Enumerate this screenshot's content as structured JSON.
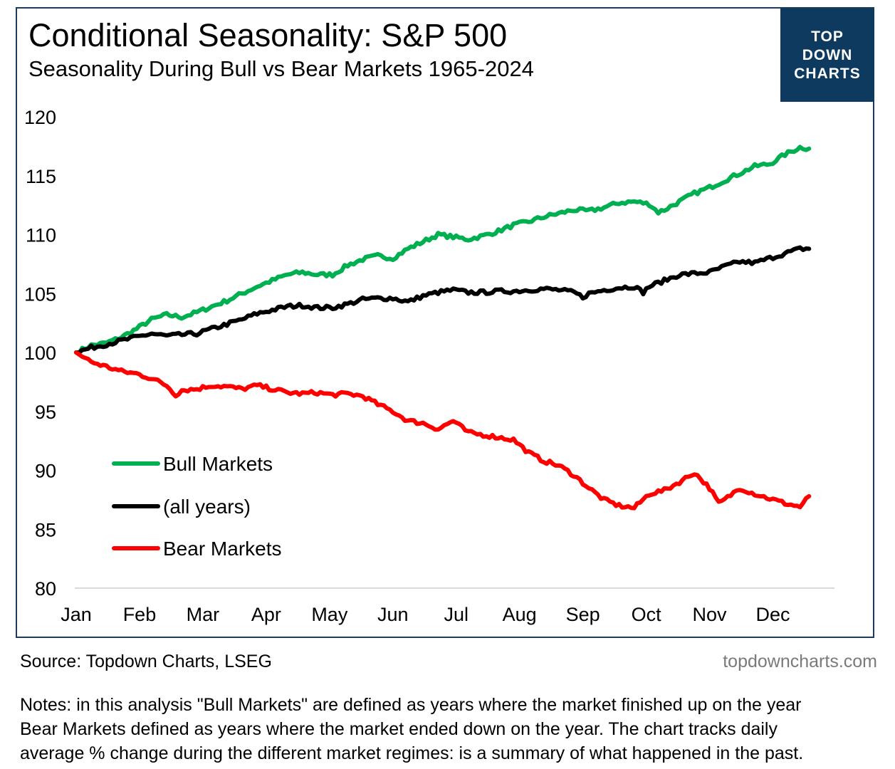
{
  "header": {
    "title": "Conditional Seasonality: S&P 500",
    "subtitle": "Seasonality During Bull vs Bear Markets 1965-2024"
  },
  "logo": {
    "lines": [
      "TOP",
      "DOWN",
      "CHARTS"
    ]
  },
  "footer": {
    "source": "Source: Topdown Charts, LSEG",
    "website": "topdowncharts.com",
    "notes": [
      "Notes: in this analysis \"Bull Markets\" are defined as years where the market finished up on the year",
      "Bear Markets defined as years where the market ended down on the year.  The chart tracks daily",
      "average % change during the different market regimes: is a summary of what happened in the past."
    ]
  },
  "colors": {
    "bull": "#00b050",
    "all": "#000000",
    "bear": "#ff0000",
    "frame": "#1b3a5c",
    "logo_bg": "#0d3a5e",
    "axis": "#d9d9d9"
  },
  "chart_data": {
    "type": "line",
    "title": "Conditional Seasonality: S&P 500",
    "subtitle": "Seasonality During Bull vs Bear Markets 1965-2024",
    "xlabel": "",
    "ylabel": "",
    "x_unit": "trading day (0-250)",
    "xlim": [
      0,
      250
    ],
    "ylim": [
      80,
      120
    ],
    "yticks": [
      80,
      85,
      90,
      95,
      100,
      105,
      110,
      115,
      120
    ],
    "months": [
      "Jan",
      "Feb",
      "Mar",
      "Apr",
      "May",
      "Jun",
      "Jul",
      "Aug",
      "Sep",
      "Oct",
      "Nov",
      "Dec"
    ],
    "month_positions": [
      0,
      21,
      42,
      63,
      84,
      105,
      126,
      147,
      168,
      189,
      210,
      231
    ],
    "grid": false,
    "legend_position": "lower-left",
    "series": [
      {
        "name": "Bull Markets",
        "color": "#00b050",
        "points": [
          [
            0,
            100
          ],
          [
            5,
            100.6
          ],
          [
            10,
            100.8
          ],
          [
            15,
            101.3
          ],
          [
            20,
            102.0
          ],
          [
            25,
            102.8
          ],
          [
            30,
            103.2
          ],
          [
            35,
            103.0
          ],
          [
            40,
            103.4
          ],
          [
            45,
            103.9
          ],
          [
            50,
            104.4
          ],
          [
            55,
            105.0
          ],
          [
            60,
            105.6
          ],
          [
            65,
            106.1
          ],
          [
            70,
            106.6
          ],
          [
            75,
            106.8
          ],
          [
            80,
            106.6
          ],
          [
            85,
            106.6
          ],
          [
            90,
            107.4
          ],
          [
            95,
            107.9
          ],
          [
            100,
            108.2
          ],
          [
            105,
            108.0
          ],
          [
            110,
            108.8
          ],
          [
            115,
            109.4
          ],
          [
            120,
            110.0
          ],
          [
            125,
            109.8
          ],
          [
            130,
            109.6
          ],
          [
            135,
            109.9
          ],
          [
            140,
            110.3
          ],
          [
            145,
            110.8
          ],
          [
            150,
            111.1
          ],
          [
            155,
            111.5
          ],
          [
            160,
            111.8
          ],
          [
            165,
            112.1
          ],
          [
            170,
            112.0
          ],
          [
            175,
            112.3
          ],
          [
            180,
            112.7
          ],
          [
            185,
            112.8
          ],
          [
            190,
            112.6
          ],
          [
            193,
            111.9
          ],
          [
            195,
            112.1
          ],
          [
            200,
            112.8
          ],
          [
            205,
            113.5
          ],
          [
            210,
            114.0
          ],
          [
            215,
            114.6
          ],
          [
            220,
            115.2
          ],
          [
            225,
            115.8
          ],
          [
            230,
            116.0
          ],
          [
            235,
            116.8
          ],
          [
            240,
            117.4
          ],
          [
            243,
            117.3
          ]
        ]
      },
      {
        "name": "(all years)",
        "color": "#000000",
        "points": [
          [
            0,
            100
          ],
          [
            5,
            100.4
          ],
          [
            10,
            100.7
          ],
          [
            15,
            101.0
          ],
          [
            20,
            101.3
          ],
          [
            25,
            101.6
          ],
          [
            30,
            101.4
          ],
          [
            35,
            101.5
          ],
          [
            40,
            101.6
          ],
          [
            45,
            102.0
          ],
          [
            50,
            102.4
          ],
          [
            55,
            102.8
          ],
          [
            60,
            103.3
          ],
          [
            65,
            103.6
          ],
          [
            70,
            103.9
          ],
          [
            75,
            104.0
          ],
          [
            80,
            103.8
          ],
          [
            85,
            103.8
          ],
          [
            90,
            104.1
          ],
          [
            95,
            104.5
          ],
          [
            100,
            104.6
          ],
          [
            105,
            104.6
          ],
          [
            110,
            104.3
          ],
          [
            115,
            104.8
          ],
          [
            120,
            105.1
          ],
          [
            125,
            105.3
          ],
          [
            130,
            105.1
          ],
          [
            135,
            105.1
          ],
          [
            140,
            105.2
          ],
          [
            145,
            105.2
          ],
          [
            150,
            105.3
          ],
          [
            155,
            105.4
          ],
          [
            160,
            105.3
          ],
          [
            165,
            105.1
          ],
          [
            168,
            104.7
          ],
          [
            170,
            105.0
          ],
          [
            175,
            105.3
          ],
          [
            180,
            105.5
          ],
          [
            185,
            105.6
          ],
          [
            188,
            105.1
          ],
          [
            190,
            105.6
          ],
          [
            195,
            106.1
          ],
          [
            200,
            106.6
          ],
          [
            205,
            106.7
          ],
          [
            210,
            106.8
          ],
          [
            215,
            107.3
          ],
          [
            220,
            107.7
          ],
          [
            225,
            107.6
          ],
          [
            230,
            108.0
          ],
          [
            235,
            108.4
          ],
          [
            240,
            108.8
          ],
          [
            243,
            108.8
          ]
        ]
      },
      {
        "name": "Bear Markets",
        "color": "#ff0000",
        "points": [
          [
            0,
            100
          ],
          [
            5,
            99.2
          ],
          [
            10,
            98.8
          ],
          [
            15,
            98.4
          ],
          [
            20,
            98.2
          ],
          [
            25,
            97.8
          ],
          [
            30,
            97.2
          ],
          [
            33,
            96.4
          ],
          [
            35,
            96.8
          ],
          [
            40,
            96.9
          ],
          [
            45,
            97.2
          ],
          [
            50,
            97.1
          ],
          [
            55,
            96.9
          ],
          [
            60,
            97.2
          ],
          [
            65,
            96.9
          ],
          [
            70,
            96.6
          ],
          [
            75,
            96.5
          ],
          [
            80,
            96.6
          ],
          [
            85,
            96.4
          ],
          [
            90,
            96.5
          ],
          [
            95,
            96.3
          ],
          [
            100,
            95.6
          ],
          [
            105,
            95.0
          ],
          [
            110,
            94.2
          ],
          [
            115,
            94.0
          ],
          [
            120,
            93.5
          ],
          [
            125,
            94.2
          ],
          [
            130,
            93.2
          ],
          [
            135,
            93.0
          ],
          [
            140,
            92.8
          ],
          [
            145,
            92.6
          ],
          [
            150,
            91.5
          ],
          [
            155,
            90.8
          ],
          [
            160,
            90.4
          ],
          [
            165,
            89.6
          ],
          [
            170,
            88.5
          ],
          [
            175,
            87.5
          ],
          [
            180,
            87.0
          ],
          [
            185,
            86.8
          ],
          [
            190,
            88.0
          ],
          [
            195,
            88.3
          ],
          [
            200,
            89.0
          ],
          [
            205,
            89.8
          ],
          [
            210,
            88.5
          ],
          [
            213,
            87.2
          ],
          [
            215,
            87.5
          ],
          [
            220,
            88.5
          ],
          [
            225,
            88.0
          ],
          [
            230,
            87.6
          ],
          [
            235,
            87.2
          ],
          [
            240,
            86.9
          ],
          [
            243,
            87.8
          ]
        ]
      }
    ]
  }
}
